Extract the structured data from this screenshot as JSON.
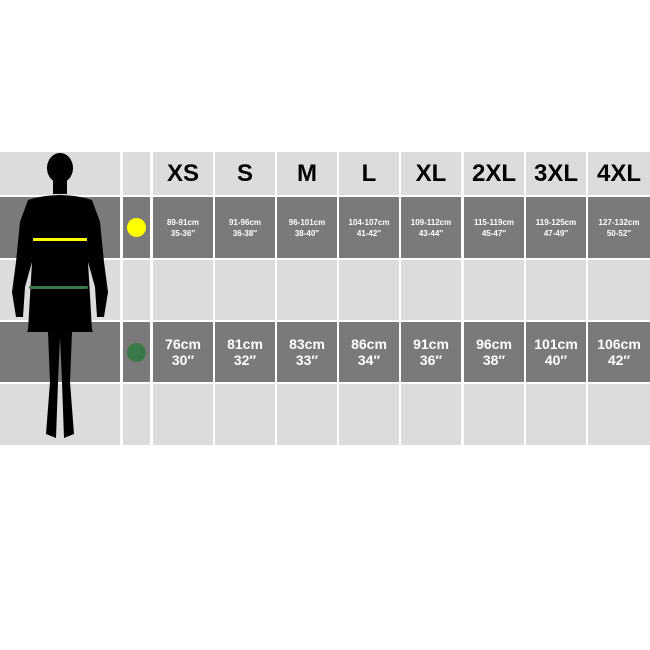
{
  "sizes": [
    "XS",
    "S",
    "M",
    "L",
    "XL",
    "2XL",
    "3XL",
    "4XL"
  ],
  "chest": {
    "color": "#ffff00",
    "values": [
      {
        "cm": "89-91cm",
        "in": "35-36″"
      },
      {
        "cm": "91-96cm",
        "in": "36-38″"
      },
      {
        "cm": "96-101cm",
        "in": "38-40″"
      },
      {
        "cm": "104-107cm",
        "in": "41-42″"
      },
      {
        "cm": "109-112cm",
        "in": "43-44″"
      },
      {
        "cm": "115-119cm",
        "in": "45-47″"
      },
      {
        "cm": "119-125cm",
        "in": "47-49″"
      },
      {
        "cm": "127-132cm",
        "in": "50-52″"
      }
    ]
  },
  "waist": {
    "color": "#3a7a4a",
    "values": [
      {
        "cm": "76cm",
        "in": "30″"
      },
      {
        "cm": "81cm",
        "in": "32″"
      },
      {
        "cm": "83cm",
        "in": "33″"
      },
      {
        "cm": "86cm",
        "in": "34″"
      },
      {
        "cm": "91cm",
        "in": "36″"
      },
      {
        "cm": "96cm",
        "in": "38″"
      },
      {
        "cm": "101cm",
        "in": "40″"
      },
      {
        "cm": "106cm",
        "in": "42″"
      }
    ]
  }
}
